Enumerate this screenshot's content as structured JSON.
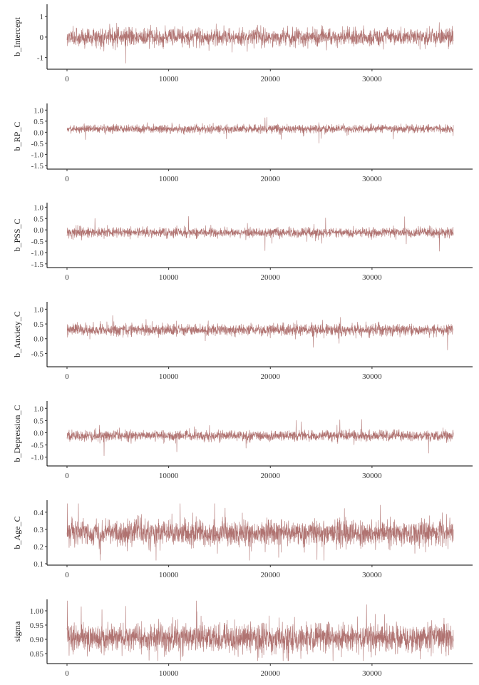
{
  "chart_data": [
    {
      "type": "line",
      "ylabel": "b_Intercept",
      "xlim": [
        0,
        38000
      ],
      "ylim": [
        -1.5,
        1.6
      ],
      "x_ticks": [
        0,
        10000,
        20000,
        30000
      ],
      "y_ticks": [
        -1,
        0,
        1
      ],
      "y_tick_labels": [
        "-1",
        "0",
        "1"
      ],
      "trace": {
        "center": 0.0,
        "sd": 0.22,
        "min": -1.45,
        "max": 1.55
      },
      "grid": false
    },
    {
      "type": "line",
      "ylabel": "b_RP_C",
      "xlim": [
        0,
        38000
      ],
      "ylim": [
        -1.6,
        1.3
      ],
      "x_ticks": [
        0,
        10000,
        20000,
        30000
      ],
      "y_ticks": [
        -1.5,
        -1.0,
        -0.5,
        0.0,
        0.5,
        1.0
      ],
      "y_tick_labels": [
        "-1.5",
        "-1.0",
        "-0.5",
        "0.0",
        "0.5",
        "1.0"
      ],
      "trace": {
        "center": 0.15,
        "sd": 0.09,
        "min": -1.45,
        "max": 1.25
      },
      "grid": false
    },
    {
      "type": "line",
      "ylabel": "b_PSS_C",
      "xlim": [
        0,
        38000
      ],
      "ylim": [
        -1.6,
        1.2
      ],
      "x_ticks": [
        0,
        10000,
        20000,
        30000
      ],
      "y_ticks": [
        -1.5,
        -1.0,
        -0.5,
        0.0,
        0.5,
        1.0
      ],
      "y_tick_labels": [
        "-1.5",
        "-1.0",
        "-0.5",
        "0.0",
        "0.5",
        "1.0"
      ],
      "trace": {
        "center": -0.12,
        "sd": 0.11,
        "min": -1.45,
        "max": 1.1
      },
      "grid": false
    },
    {
      "type": "line",
      "ylabel": "b_Anxiety_C",
      "xlim": [
        0,
        38000
      ],
      "ylim": [
        -0.9,
        1.25
      ],
      "x_ticks": [
        0,
        10000,
        20000,
        30000
      ],
      "y_ticks": [
        -0.5,
        0.0,
        0.5,
        1.0
      ],
      "y_tick_labels": [
        "-0.5",
        "0.0",
        "0.5",
        "1.0"
      ],
      "trace": {
        "center": 0.3,
        "sd": 0.1,
        "min": -0.85,
        "max": 1.15
      },
      "grid": false
    },
    {
      "type": "line",
      "ylabel": "b_Depression_C",
      "xlim": [
        0,
        38000
      ],
      "ylim": [
        -1.3,
        1.3
      ],
      "x_ticks": [
        0,
        10000,
        20000,
        30000
      ],
      "y_ticks": [
        -1.0,
        -0.5,
        0.0,
        0.5,
        1.0
      ],
      "y_tick_labels": [
        "-1.0",
        "-0.5",
        "0.0",
        "0.5",
        "1.0"
      ],
      "trace": {
        "center": -0.12,
        "sd": 0.11,
        "min": -1.25,
        "max": 1.2
      },
      "grid": false
    },
    {
      "type": "line",
      "ylabel": "b_Age_C",
      "xlim": [
        0,
        38000
      ],
      "ylim": [
        0.1,
        0.47
      ],
      "x_ticks": [
        0,
        10000,
        20000,
        30000
      ],
      "y_ticks": [
        0.1,
        0.2,
        0.3,
        0.4
      ],
      "y_tick_labels": [
        "0.1",
        "0.2",
        "0.3",
        "0.4"
      ],
      "trace": {
        "center": 0.28,
        "sd": 0.038,
        "min": 0.12,
        "max": 0.45
      },
      "grid": false
    },
    {
      "type": "line",
      "ylabel": "sigma",
      "xlim": [
        0,
        38000
      ],
      "ylim": [
        0.82,
        1.04
      ],
      "x_ticks": [
        0,
        10000,
        20000,
        30000
      ],
      "y_ticks": [
        0.85,
        0.9,
        0.95,
        1.0
      ],
      "y_tick_labels": [
        "0.85",
        "0.90",
        "0.95",
        "1.00"
      ],
      "trace": {
        "center": 0.905,
        "sd": 0.025,
        "min": 0.825,
        "max": 1.035
      },
      "grid": false
    }
  ],
  "x_tick_labels": [
    "0",
    "10000",
    "20000",
    "30000"
  ],
  "trace_color": "#b07371",
  "iterations": 38000
}
